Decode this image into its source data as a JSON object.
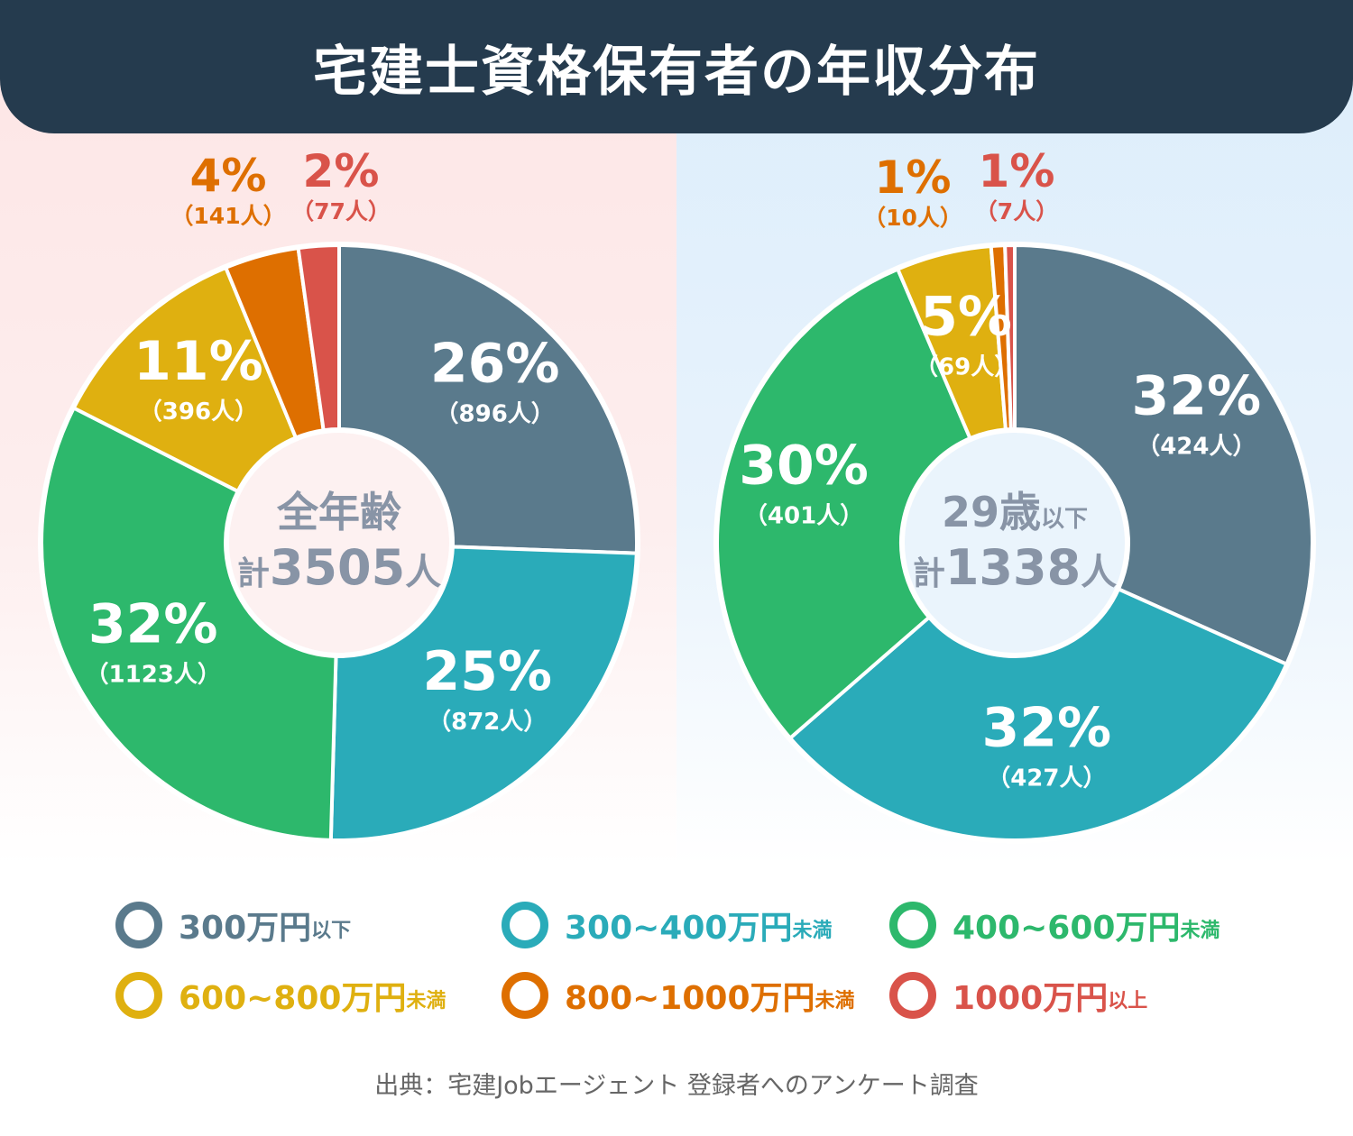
{
  "title": "宅建士資格保有者の年収分布",
  "source": "出典：宅建Jobエージェント 登録者へのアンケート調査",
  "colors": {
    "c300": "#5a7a8c",
    "c300_400": "#2aabb9",
    "c400_600": "#2db86c",
    "c600_800": "#dfb010",
    "c800_1000": "#de6f00",
    "c1000": "#d9534a",
    "center_text": "#8894a6"
  },
  "legend": [
    {
      "main": "300万円",
      "sub": "以下",
      "color": "#5a7a8c"
    },
    {
      "main": "300~400万円",
      "sub": "未満",
      "color": "#2aabb9"
    },
    {
      "main": "400~600万円",
      "sub": "未満",
      "color": "#2db86c"
    },
    {
      "main": "600~800万円",
      "sub": "未満",
      "color": "#dfb010"
    },
    {
      "main": "800~1000万円",
      "sub": "未満",
      "color": "#de6f00"
    },
    {
      "main": "1000万円",
      "sub": "以上",
      "color": "#d9534a"
    }
  ],
  "chart_data": [
    {
      "type": "pie",
      "center_line1": "全年齢",
      "center_line2_prefix": "計",
      "center_line2_value": "3505",
      "center_line2_suffix": "人",
      "categories": [
        "300万円以下",
        "300~400万円未満",
        "400~600万円未満",
        "600~800万円未満",
        "800~1000万円未満",
        "1000万円以上"
      ],
      "values": [
        896,
        872,
        1123,
        396,
        141,
        77
      ],
      "percent_labels": [
        "26%",
        "25%",
        "32%",
        "11%",
        "4%",
        "2%"
      ],
      "count_labels": [
        "（896人）",
        "（872人）",
        "（1123人）",
        "（396人）",
        "（141人）",
        "（77人）"
      ]
    },
    {
      "type": "pie",
      "center_line1": "29歳",
      "center_line1_suffix": "以下",
      "center_line2_prefix": "計",
      "center_line2_value": "1338",
      "center_line2_suffix": "人",
      "categories": [
        "300万円以下",
        "300~400万円未満",
        "400~600万円未満",
        "600~800万円未満",
        "800~1000万円未満",
        "1000万円以上"
      ],
      "values": [
        424,
        427,
        401,
        69,
        10,
        7
      ],
      "percent_labels": [
        "32%",
        "32%",
        "30%",
        "5%",
        "1%",
        "1%"
      ],
      "count_labels": [
        "（424人）",
        "（427人）",
        "（401人）",
        "（69人）",
        "（10人）",
        "（7人）"
      ]
    }
  ]
}
